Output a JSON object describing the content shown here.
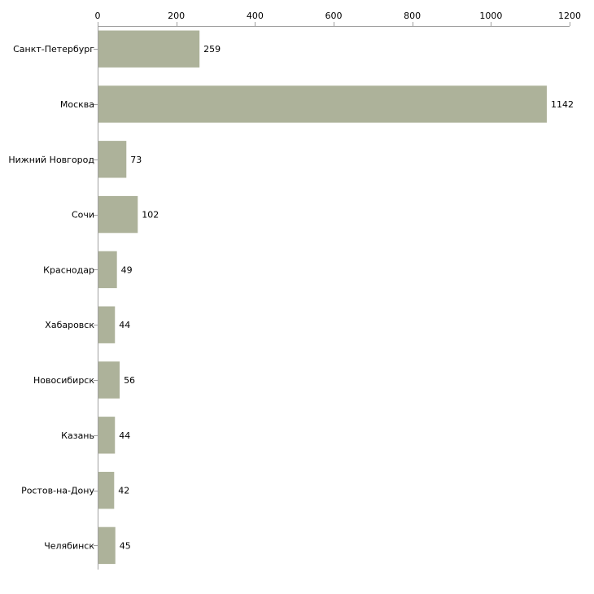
{
  "colors": {
    "bar": "#adb29a",
    "axis": "#a0a0a0",
    "text": "#000000"
  },
  "chart_data": {
    "type": "bar",
    "orientation": "horizontal",
    "title": "",
    "xlabel": "",
    "ylabel": "",
    "xlim": [
      0,
      1200
    ],
    "x_ticks": [
      0,
      200,
      400,
      600,
      800,
      1000,
      1200
    ],
    "x_axis_position": "top",
    "grid": false,
    "categories": [
      "Санкт-Петербург",
      "Москва",
      "Нижний Новгород",
      "Сочи",
      "Краснодар",
      "Хабаровск",
      "Новосибирск",
      "Казань",
      "Ростов-на-Дону",
      "Челябинск"
    ],
    "values": [
      259,
      1142,
      73,
      102,
      49,
      44,
      56,
      44,
      42,
      45
    ]
  }
}
